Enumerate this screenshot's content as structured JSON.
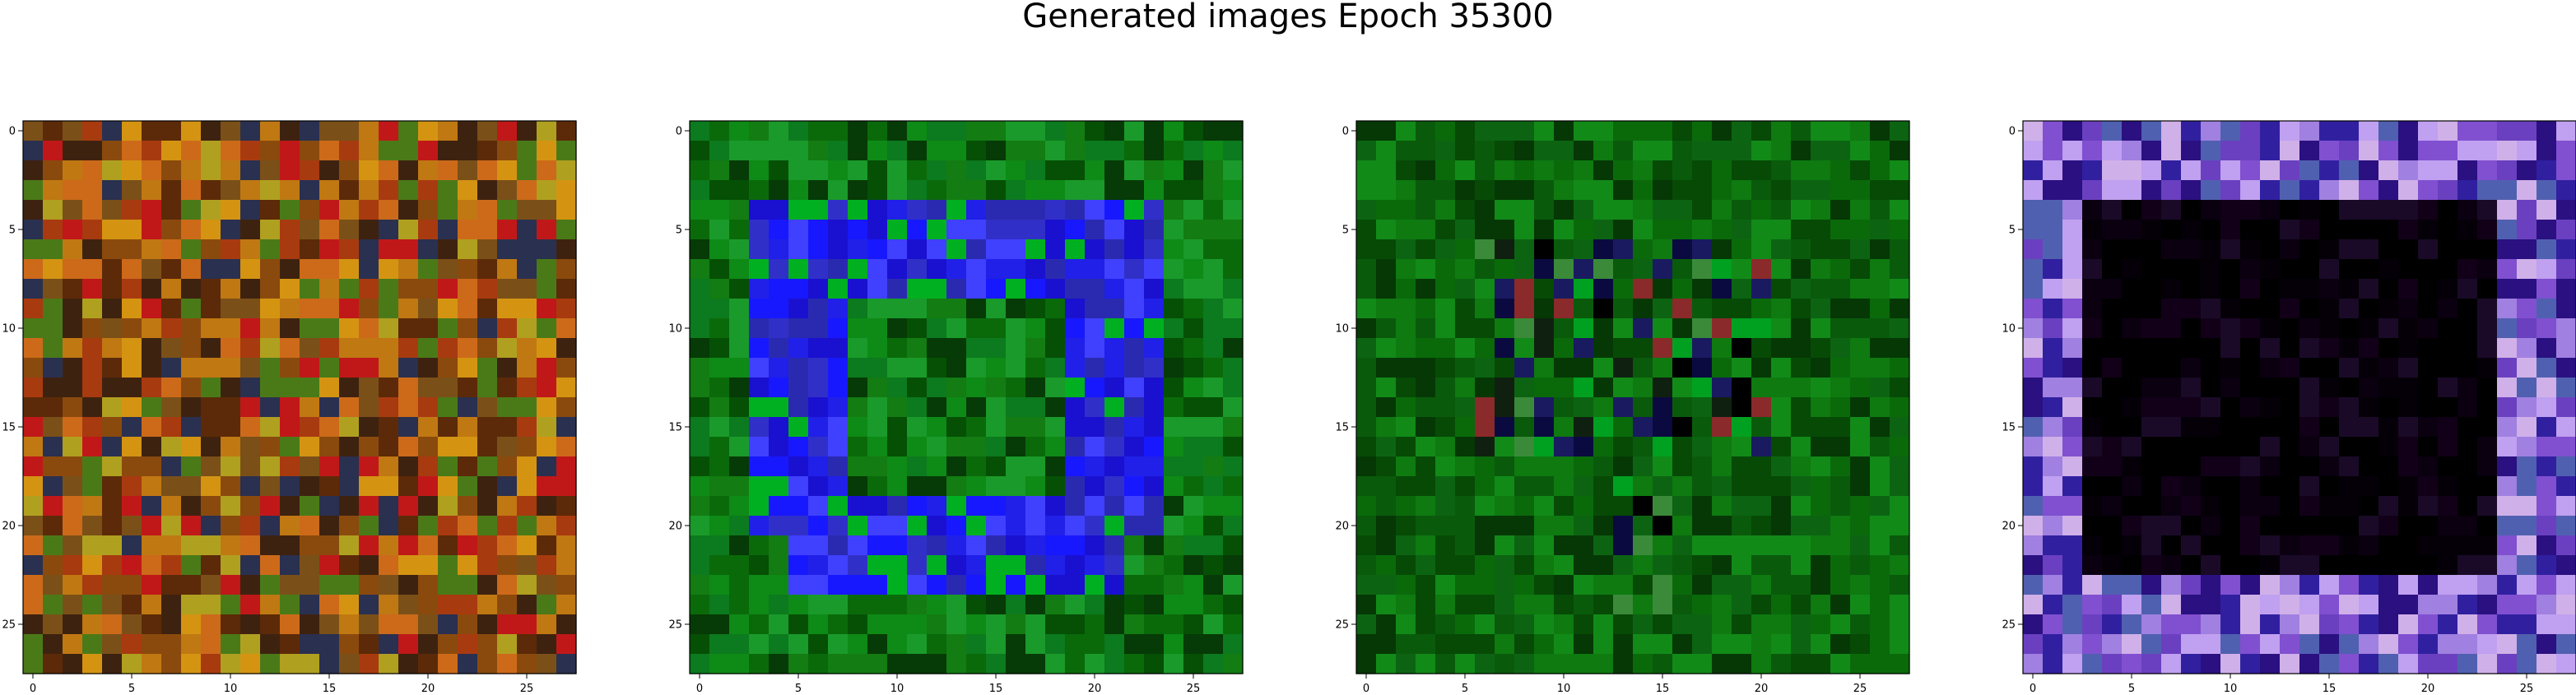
{
  "title": "Generated images Epoch 35300",
  "chart_data": [
    {
      "type": "heatmap",
      "panel": 1,
      "grid": false,
      "x_ticks": [
        "0",
        "5",
        "10",
        "15",
        "20",
        "25"
      ],
      "y_ticks": [
        "0",
        "5",
        "10",
        "15",
        "20",
        "25"
      ],
      "xlim": [
        -0.5,
        27.5
      ],
      "ylim": [
        27.5,
        -0.5
      ],
      "pixels": "28x28 RGB",
      "pattern": "noise",
      "palette": [
        "#c07812",
        "#8a4a0d",
        "#5c2a08",
        "#d49412",
        "#a83a10",
        "#3e2210",
        "#b0a020",
        "#cc6a1a",
        "#7a5018",
        "#2a3050",
        "#c01818",
        "#4a7a18"
      ]
    },
    {
      "type": "heatmap",
      "panel": 2,
      "grid": false,
      "x_ticks": [
        "0",
        "5",
        "10",
        "15",
        "20",
        "25"
      ],
      "y_ticks": [
        "0",
        "5",
        "10",
        "15",
        "20",
        "25"
      ],
      "xlim": [
        -0.5,
        27.5
      ],
      "ylim": [
        27.5,
        -0.5
      ],
      "pixels": "28x28 RGB",
      "pattern": "ring",
      "bg_palette": [
        "#0a6a0a",
        "#0e8a16",
        "#055005",
        "#1a9a2a",
        "#063a06",
        "#0c7a1e",
        "#137c12"
      ],
      "fg_palette": [
        "#2020e8",
        "#1818ff",
        "#3030c8",
        "#1a10d0",
        "#4040ff",
        "#00b020",
        "#2a2ab0"
      ]
    },
    {
      "type": "heatmap",
      "panel": 3,
      "grid": false,
      "x_ticks": [
        "0",
        "5",
        "10",
        "15",
        "20",
        "25"
      ],
      "y_ticks": [
        "0",
        "5",
        "10",
        "15",
        "20",
        "25"
      ],
      "xlim": [
        -0.5,
        27.5
      ],
      "ylim": [
        27.5,
        -0.5
      ],
      "pixels": "28x28 RGB",
      "pattern": "blob",
      "bg_palette": [
        "#0a6a0a",
        "#0e7a10",
        "#064a06",
        "#0a5a0c",
        "#128a18",
        "#053805",
        "#0c6412"
      ],
      "fg_palette": [
        "#000000",
        "#102010",
        "#1a1a60",
        "#3a8a3a",
        "#0a0a40",
        "#8a2a2a",
        "#00a020"
      ]
    },
    {
      "type": "heatmap",
      "panel": 4,
      "grid": false,
      "x_ticks": [
        "0",
        "5",
        "10",
        "15",
        "20",
        "25"
      ],
      "y_ticks": [
        "0",
        "5",
        "10",
        "15",
        "20",
        "25"
      ],
      "xlim": [
        -0.5,
        27.5
      ],
      "ylim": [
        27.5,
        -0.5
      ],
      "pixels": "28x28 RGB",
      "pattern": "frame",
      "bg_palette": [
        "#000000",
        "#050008",
        "#0a0010",
        "#000000",
        "#120018",
        "#000000",
        "#1a0a28"
      ],
      "fg_palette": [
        "#6a40c0",
        "#a080e0",
        "#3020a0",
        "#c0a0f0",
        "#8050d0",
        "#5060b0",
        "#d0b0e8",
        "#2a1080"
      ]
    }
  ]
}
